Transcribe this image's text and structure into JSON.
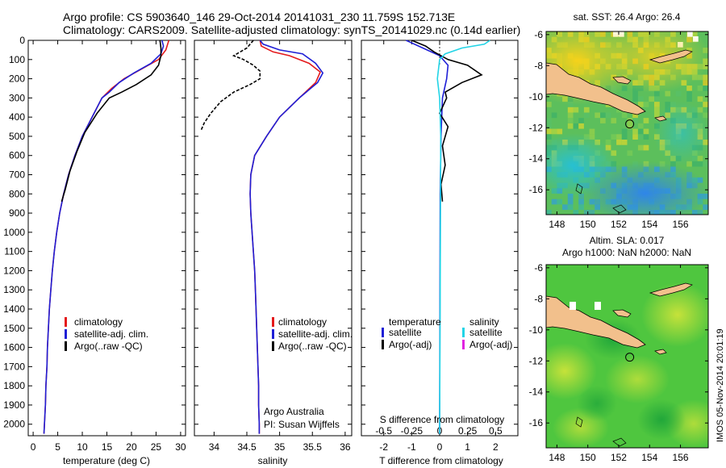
{
  "header": {
    "title_line1": "Argo profile: CS 5903640_146 29-Oct-2014 20141031_230 11.759S 152.713E",
    "title_line2": "Climatology: CARS2009. Satellite-adjusted climatology: synTS_20141029.nc (0.14d earlier)"
  },
  "colors": {
    "climatology": "#e41a1c",
    "satellite": "#1f1fd6",
    "argo": "#000000",
    "salinity_satellite": "#22d4e6",
    "salinity_argo": "#e022e0",
    "land": "#f2c08c"
  },
  "depth_ticks": [
    "0",
    "100",
    "200",
    "300",
    "400",
    "500",
    "600",
    "700",
    "800",
    "900",
    "1000",
    "1100",
    "1200",
    "1300",
    "1400",
    "1500",
    "1600",
    "1700",
    "1800",
    "1900",
    "2000"
  ],
  "chart_data": [
    {
      "type": "line",
      "panel": "temperature",
      "xlabel": "temperature (deg C)",
      "ylabel": "depth",
      "xlim": [
        -1,
        31
      ],
      "ylim": [
        2060,
        0
      ],
      "xticks": [
        "0",
        "5",
        "10",
        "15",
        "20",
        "25",
        "30"
      ],
      "legend": [
        "climatology",
        "satellite-adj. clim.",
        "Argo(..raw -QC)"
      ],
      "series": [
        {
          "name": "climatology",
          "points": [
            [
              27.6,
              0
            ],
            [
              27,
              50
            ],
            [
              25.5,
              100
            ],
            [
              22,
              150
            ],
            [
              18.5,
              200
            ],
            [
              16,
              250
            ],
            [
              14,
              300
            ],
            [
              12,
              400
            ],
            [
              10,
              500
            ],
            [
              8.5,
              600
            ],
            [
              7.2,
              700
            ],
            [
              6.2,
              800
            ],
            [
              5.4,
              900
            ],
            [
              4.8,
              1000
            ],
            [
              4.3,
              1100
            ],
            [
              3.9,
              1200
            ],
            [
              3.6,
              1300
            ],
            [
              3.3,
              1400
            ],
            [
              3.1,
              1500
            ],
            [
              2.9,
              1600
            ],
            [
              2.8,
              1700
            ],
            [
              2.6,
              1800
            ],
            [
              2.5,
              1900
            ],
            [
              2.3,
              2000
            ],
            [
              2.2,
              2050
            ]
          ]
        },
        {
          "name": "satellite-adj. clim.",
          "points": [
            [
              26.2,
              0
            ],
            [
              26.5,
              30
            ],
            [
              26,
              70
            ],
            [
              24,
              120
            ],
            [
              20.5,
              170
            ],
            [
              17.5,
              220
            ],
            [
              15.5,
              270
            ],
            [
              14,
              300
            ],
            [
              12,
              400
            ],
            [
              10,
              500
            ],
            [
              8.5,
              600
            ],
            [
              7.2,
              700
            ],
            [
              6.2,
              800
            ],
            [
              5.4,
              900
            ],
            [
              4.8,
              1000
            ],
            [
              4.3,
              1100
            ],
            [
              3.9,
              1200
            ],
            [
              3.6,
              1300
            ],
            [
              3.3,
              1400
            ],
            [
              3.1,
              1500
            ],
            [
              2.9,
              1600
            ],
            [
              2.8,
              1700
            ],
            [
              2.6,
              1800
            ],
            [
              2.5,
              1900
            ],
            [
              2.3,
              2000
            ],
            [
              2.2,
              2050
            ]
          ]
        },
        {
          "name": "Argo(..raw -QC)",
          "points": [
            [
              25.8,
              0
            ],
            [
              26,
              40
            ],
            [
              26,
              80
            ],
            [
              25.5,
              130
            ],
            [
              24,
              180
            ],
            [
              21,
              230
            ],
            [
              18,
              270
            ],
            [
              15.5,
              300
            ],
            [
              13,
              380
            ],
            [
              10.5,
              480
            ],
            [
              8.9,
              580
            ],
            [
              7.5,
              680
            ],
            [
              6.5,
              780
            ],
            [
              5.8,
              840
            ]
          ]
        }
      ]
    },
    {
      "type": "line",
      "panel": "salinity",
      "xlabel": "salinity",
      "ylabel": "depth",
      "xlim": [
        33.7,
        36.1
      ],
      "ylim": [
        2060,
        0
      ],
      "xticks": [
        "34",
        "34.5",
        "35",
        "35.5",
        "36"
      ],
      "legend": [
        "climatology",
        "satellite-adj. clim.",
        "Argo(..raw -QC)"
      ],
      "annotation_1": "Argo Australia",
      "annotation_2": "PI: Susan Wijffels",
      "series": [
        {
          "name": "climatology",
          "points": [
            [
              34.7,
              0
            ],
            [
              34.72,
              30
            ],
            [
              34.9,
              60
            ],
            [
              35.15,
              80
            ],
            [
              35.45,
              120
            ],
            [
              35.62,
              165
            ],
            [
              35.55,
              220
            ],
            [
              35.3,
              300
            ],
            [
              35.0,
              400
            ],
            [
              34.8,
              500
            ],
            [
              34.62,
              600
            ],
            [
              34.56,
              700
            ],
            [
              34.55,
              800
            ],
            [
              34.56,
              900
            ],
            [
              34.58,
              1000
            ],
            [
              34.6,
              1100
            ],
            [
              34.62,
              1200
            ],
            [
              34.63,
              1300
            ],
            [
              34.64,
              1400
            ],
            [
              34.65,
              1500
            ],
            [
              34.66,
              1600
            ],
            [
              34.67,
              1700
            ],
            [
              34.68,
              1800
            ],
            [
              34.68,
              1900
            ],
            [
              34.69,
              2000
            ],
            [
              34.69,
              2050
            ]
          ]
        },
        {
          "name": "satellite-adj. clim.",
          "points": [
            [
              34.7,
              0
            ],
            [
              34.75,
              20
            ],
            [
              35.0,
              50
            ],
            [
              35.35,
              70
            ],
            [
              35.55,
              120
            ],
            [
              35.66,
              170
            ],
            [
              35.58,
              220
            ],
            [
              35.3,
              300
            ],
            [
              35.0,
              400
            ],
            [
              34.8,
              500
            ],
            [
              34.62,
              600
            ],
            [
              34.56,
              700
            ],
            [
              34.55,
              800
            ],
            [
              34.56,
              900
            ],
            [
              34.58,
              1000
            ],
            [
              34.6,
              1100
            ],
            [
              34.62,
              1200
            ],
            [
              34.63,
              1300
            ],
            [
              34.64,
              1400
            ],
            [
              34.65,
              1500
            ],
            [
              34.66,
              1600
            ],
            [
              34.67,
              1700
            ],
            [
              34.68,
              1800
            ],
            [
              34.68,
              1900
            ],
            [
              34.69,
              2000
            ],
            [
              34.69,
              2050
            ]
          ]
        },
        {
          "name": "Argo(..raw -QC)",
          "points": [
            [
              34.6,
              0
            ],
            [
              34.5,
              40
            ],
            [
              34.3,
              80
            ],
            [
              34.45,
              100
            ],
            [
              34.6,
              130
            ],
            [
              34.7,
              160
            ],
            [
              34.7,
              200
            ],
            [
              34.55,
              230
            ],
            [
              34.3,
              270
            ],
            [
              34.1,
              320
            ],
            [
              33.95,
              380
            ],
            [
              33.85,
              430
            ],
            [
              33.8,
              470
            ]
          ]
        }
      ]
    },
    {
      "type": "line",
      "panel": "difference",
      "xlabel": "T difference from climatology",
      "xlabel_top": "S difference from climatology",
      "ylabel": "depth",
      "xlim": [
        -2.8,
        2.8
      ],
      "xlim_salinity": [
        -0.7,
        0.7
      ],
      "ylim": [
        2060,
        0
      ],
      "xticks": [
        "-2",
        "-1",
        "0",
        "1",
        "2"
      ],
      "xticks_salinity": [
        "-0.5",
        "-0.25",
        "0",
        "0.25",
        "0.5"
      ],
      "legend_title_t": "temperature",
      "legend_title_s": "salinity",
      "legend_t": [
        "satellite",
        "Argo(-adj)"
      ],
      "legend_s": [
        "satellite",
        "Argo(-adj)"
      ],
      "series": [
        {
          "name": "temperature satellite",
          "points": [
            [
              -1.2,
              0
            ],
            [
              -0.6,
              40
            ],
            [
              0,
              80
            ],
            [
              0.3,
              130
            ],
            [
              0.25,
              200
            ],
            [
              0.1,
              300
            ],
            [
              0.05,
              500
            ],
            [
              0.02,
              800
            ],
            [
              0,
              2050
            ]
          ]
        },
        {
          "name": "temperature Argo(-adj)",
          "points": [
            [
              -1.0,
              0
            ],
            [
              -0.5,
              30
            ],
            [
              -0.2,
              60
            ],
            [
              0.3,
              100
            ],
            [
              1.0,
              130
            ],
            [
              1.5,
              180
            ],
            [
              0.8,
              220
            ],
            [
              0.2,
              270
            ],
            [
              0.25,
              300
            ],
            [
              0,
              380
            ],
            [
              0.3,
              450
            ],
            [
              0.1,
              550
            ],
            [
              0.2,
              650
            ],
            [
              0.05,
              750
            ],
            [
              0.1,
              840
            ]
          ]
        },
        {
          "name": "salinity satellite",
          "points": [
            [
              0.45,
              0
            ],
            [
              0.4,
              20
            ],
            [
              0.2,
              40
            ],
            [
              0.05,
              70
            ],
            [
              0,
              100
            ],
            [
              -0.02,
              200
            ],
            [
              0,
              300
            ],
            [
              0.01,
              500
            ],
            [
              0,
              2050
            ]
          ]
        },
        {
          "name": "salinity Argo(-adj)",
          "points": []
        }
      ]
    },
    {
      "type": "heatmap",
      "panel": "map-sst",
      "title": "sat. SST: 26.4  Argo: 26.4",
      "xlim": [
        147.3,
        157.8
      ],
      "ylim": [
        -17.6,
        -5.8
      ],
      "xticks": [
        "148",
        "150",
        "152",
        "154",
        "156"
      ],
      "yticks": [
        "-6",
        "-8",
        "-10",
        "-12",
        "-14",
        "-16"
      ],
      "marker": {
        "lon": 152.713,
        "lat": -11.759
      }
    },
    {
      "type": "heatmap",
      "panel": "map-sla",
      "title_line1": "Altim. SLA: 0.017",
      "title_line2": "Argo h1000: NaN h2000: NaN",
      "xlim": [
        147.3,
        157.8
      ],
      "ylim": [
        -17.6,
        -5.8
      ],
      "xticks": [
        "148",
        "150",
        "152",
        "154",
        "156"
      ],
      "yticks": [
        "-6",
        "-8",
        "-10",
        "-12",
        "-14",
        "-16"
      ],
      "marker": {
        "lon": 152.713,
        "lat": -11.759
      }
    }
  ],
  "footer": {
    "credit": "IMOS 05-Nov-2014 20:01:19"
  }
}
